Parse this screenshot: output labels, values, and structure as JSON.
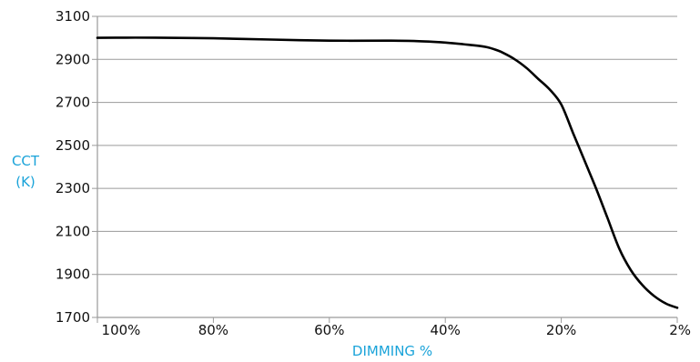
{
  "colors": {
    "accent": "#1aa3d9",
    "line": "#000000",
    "grid": "#9a9a9a",
    "text": "#111111"
  },
  "chart_data": {
    "type": "line",
    "title": "",
    "xlabel": "DIMMING %",
    "ylabel_lines": [
      "CCT",
      "(K)"
    ],
    "x_ticks": [
      "100%",
      "80%",
      "60%",
      "40%",
      "20%",
      "2%"
    ],
    "x_tick_values": [
      100,
      80,
      60,
      40,
      20,
      0
    ],
    "y_ticks": [
      "1700",
      "1900",
      "2100",
      "2300",
      "2500",
      "2700",
      "2900",
      "3100"
    ],
    "ylim": [
      1700,
      3100
    ],
    "xlim": [
      100,
      0
    ],
    "grid": true,
    "series": [
      {
        "x": [
          100,
          95,
          90,
          80,
          70,
          60,
          50,
          45,
          40,
          36,
          33,
          31,
          30,
          28,
          26,
          24,
          22,
          20,
          18,
          16,
          14,
          12,
          10,
          8,
          6,
          4,
          2,
          0
        ],
        "y": [
          3000,
          3001,
          3001,
          2998,
          2992,
          2987,
          2987,
          2985,
          2978,
          2968,
          2958,
          2942,
          2930,
          2900,
          2860,
          2810,
          2760,
          2690,
          2560,
          2430,
          2300,
          2160,
          2020,
          1920,
          1850,
          1800,
          1765,
          1745
        ]
      }
    ]
  }
}
